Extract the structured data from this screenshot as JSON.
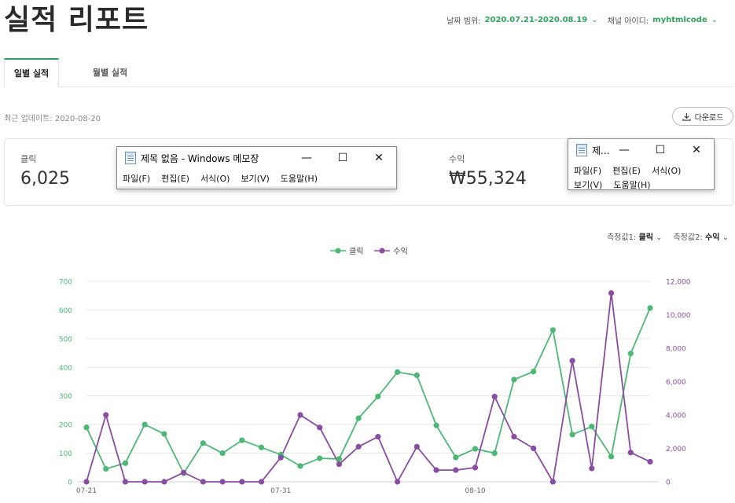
{
  "page": {
    "title": "실적 리포트"
  },
  "filters": {
    "date_label": "날짜 범위:",
    "date_value": "2020.07.21-2020.08.19",
    "channel_label": "채널 아이디:",
    "channel_value": "myhtmlcode"
  },
  "tabs": [
    {
      "label": "일별 실적",
      "active": true
    },
    {
      "label": "월별 실적",
      "active": false
    }
  ],
  "last_update": "최근 업데이트: 2020-08-20",
  "download_label": "다운로드",
  "summary": {
    "clicks_label": "클릭",
    "clicks_value": "6,025",
    "revenue_label": "수익",
    "revenue_value": "₩55,324"
  },
  "selectors": {
    "metric1_label": "측정값1:",
    "metric1_value": "클릭",
    "metric2_label": "측정값2:",
    "metric2_value": "수익"
  },
  "notepad_main": {
    "title": "제목 없음 - Windows 메모장",
    "menu": [
      "파일(F)",
      "편집(E)",
      "서식(O)",
      "보기(V)",
      "도움말(H)"
    ]
  },
  "notepad_small": {
    "title": "제...",
    "menu": [
      "파일(F)",
      "편집(E)",
      "서식(O)",
      "보기(V)",
      "도움말(H)"
    ]
  },
  "colors": {
    "accent": "#2fa35c",
    "clicks": "#4cb874",
    "revenue": "#8a4ba3"
  },
  "chart_data": {
    "type": "line",
    "legend": [
      "클릭",
      "수익"
    ],
    "x": [
      "07-21",
      "07-22",
      "07-23",
      "07-24",
      "07-25",
      "07-26",
      "07-27",
      "07-28",
      "07-29",
      "07-30",
      "07-31",
      "08-01",
      "08-02",
      "08-03",
      "08-04",
      "08-05",
      "08-06",
      "08-07",
      "08-08",
      "08-09",
      "08-10",
      "08-11",
      "08-12",
      "08-13",
      "08-14",
      "08-15",
      "08-16",
      "08-17",
      "08-18",
      "08-19"
    ],
    "x_tick_labels": [
      "07-21",
      "07-31",
      "08-10"
    ],
    "series": [
      {
        "name": "클릭",
        "axis": "left",
        "values": [
          190,
          45,
          65,
          200,
          167,
          30,
          135,
          100,
          145,
          120,
          95,
          55,
          82,
          80,
          222,
          298,
          383,
          372,
          197,
          85,
          115,
          100,
          357,
          385,
          530,
          165,
          193,
          88,
          448,
          607
        ]
      },
      {
        "name": "수익",
        "axis": "right",
        "values": [
          0,
          4000,
          0,
          0,
          0,
          550,
          0,
          0,
          0,
          0,
          1450,
          4000,
          3250,
          1050,
          2100,
          2700,
          0,
          2100,
          700,
          700,
          850,
          5100,
          2700,
          2000,
          0,
          7250,
          800,
          11300,
          1750,
          1200
        ]
      }
    ],
    "y_left": {
      "min": 0,
      "max": 700,
      "ticks": [
        0,
        100,
        200,
        300,
        400,
        500,
        600,
        700
      ]
    },
    "y_right": {
      "min": 0,
      "max": 12000,
      "ticks": [
        "0",
        "2,000",
        "4,000",
        "6,000",
        "8,000",
        "10,000",
        "12,000"
      ]
    },
    "grid": true,
    "legend_position": "top-center"
  }
}
